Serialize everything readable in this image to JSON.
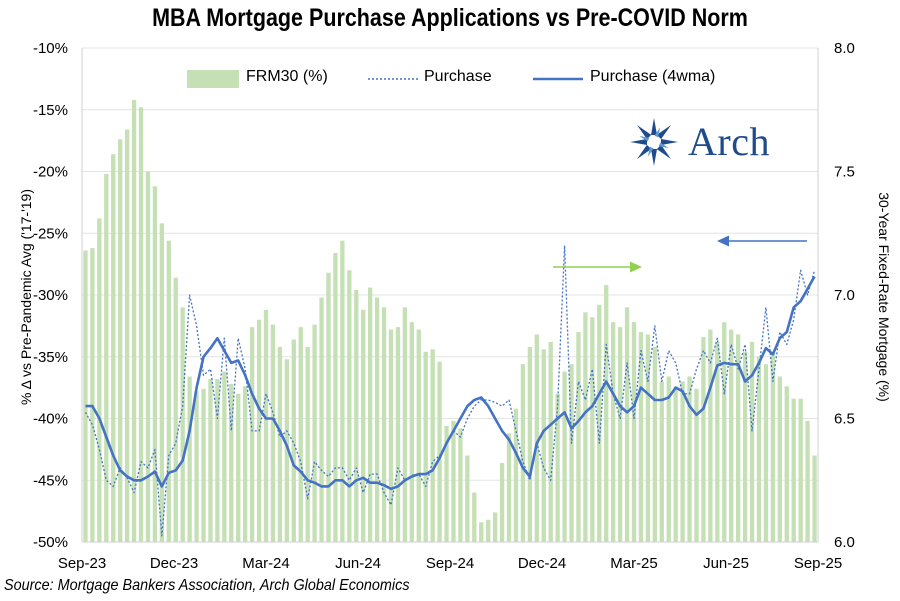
{
  "chart_data": {
    "type": "bar+line",
    "title": "MBA Mortgage Purchase Applications vs Pre-COVID Norm",
    "source": "Source: Mortgage Bankers Association, Arch Global Economics",
    "ylabel_left": "% Δ vs Pre-Pandemic Avg ('17-'19)",
    "ylabel_right": "30-Year Fixed-Rate Mortgage (%)",
    "ylim_left": [
      -50,
      -10
    ],
    "ylim_right": [
      6.0,
      8.0
    ],
    "yticks_left": [
      -10,
      -15,
      -20,
      -25,
      -30,
      -35,
      -40,
      -45,
      -50
    ],
    "yticks_left_labels": [
      "-10%",
      "-15%",
      "-20%",
      "-25%",
      "-30%",
      "-35%",
      "-40%",
      "-45%",
      "-50%"
    ],
    "yticks_right": [
      6.0,
      6.5,
      7.0,
      7.5,
      8.0
    ],
    "yticks_right_labels": [
      "6.0",
      "6.5",
      "7.0",
      "7.5",
      "8.0"
    ],
    "xlabels": [
      "Sep-23",
      "Dec-23",
      "Mar-24",
      "Jun-24",
      "Sep-24",
      "Dec-24",
      "Mar-25",
      "Jun-25",
      "Sep-25"
    ],
    "weeks": 106,
    "series": [
      {
        "name": "FRM30 (%)",
        "type": "bar",
        "axis": "right",
        "color": "#c5e0b4",
        "values": [
          7.18,
          7.19,
          7.31,
          7.49,
          7.57,
          7.63,
          7.67,
          7.79,
          7.76,
          7.5,
          7.44,
          7.29,
          7.22,
          7.07,
          6.95,
          6.67,
          6.61,
          6.62,
          6.66,
          6.66,
          6.69,
          6.64,
          6.6,
          6.63,
          6.87,
          6.9,
          6.94,
          6.88,
          6.79,
          6.74,
          6.82,
          6.87,
          6.79,
          6.88,
          6.99,
          7.09,
          7.17,
          7.22,
          7.1,
          7.02,
          6.94,
          7.03,
          6.99,
          6.95,
          6.86,
          6.87,
          6.95,
          6.89,
          6.86,
          6.77,
          6.78,
          6.73,
          6.47,
          6.49,
          6.46,
          6.35,
          6.2,
          6.08,
          6.09,
          6.12,
          6.32,
          6.44,
          6.54,
          6.72,
          6.79,
          6.84,
          6.78,
          6.81,
          6.6,
          6.69,
          6.72,
          6.85,
          6.93,
          6.91,
          6.96,
          7.04,
          6.89,
          6.87,
          6.95,
          6.89,
          6.85,
          6.84,
          6.79,
          6.65,
          6.67,
          6.63,
          6.65,
          6.67,
          6.62,
          6.83,
          6.86,
          6.81,
          6.89,
          6.86,
          6.84,
          6.77,
          6.81,
          6.75,
          6.72,
          6.77,
          6.67,
          6.63,
          6.58,
          6.58,
          6.49,
          6.35
        ],
        "legend": "FRM30 (%)"
      },
      {
        "name": "Purchase",
        "type": "line",
        "axis": "left",
        "style": "dotted",
        "color": "#4472c4",
        "values": [
          -39.5,
          -40.5,
          -42.5,
          -45,
          -45.5,
          -44,
          -44.8,
          -46,
          -43.5,
          -44,
          -42.5,
          -49.5,
          -43,
          -42,
          -39,
          -30,
          -32.5,
          -36.5,
          -36,
          -40,
          -33.5,
          -41,
          -33.5,
          -36,
          -41,
          -41,
          -38,
          -39.5,
          -41.5,
          -41,
          -42,
          -43.5,
          -46.5,
          -43.5,
          -44.2,
          -44.7,
          -44,
          -44,
          -45,
          -44,
          -46,
          -44.5,
          -44.5,
          -46,
          -47,
          -44,
          -45,
          -44.6,
          -44.5,
          -45.5,
          -43.5,
          -43,
          -42,
          -41,
          -41.5,
          -40,
          -39,
          -38.5,
          -38.5,
          -38.7,
          -39,
          -38.5,
          -41,
          -43.5,
          -45,
          -42,
          -44,
          -45,
          -39,
          -26,
          -42,
          -37,
          -38.5,
          -36,
          -42,
          -34,
          -38,
          -40,
          -35.5,
          -40,
          -34.5,
          -37,
          -32.5,
          -37,
          -34.5,
          -35.5,
          -38,
          -38,
          -36,
          -34.5,
          -35.5,
          -33.5,
          -38,
          -34,
          -36,
          -34,
          -41,
          -36,
          -31,
          -37,
          -33,
          -34,
          -32,
          -28,
          -30,
          -28
        ],
        "legend": "Purchase"
      },
      {
        "name": "Purchase (4wma)",
        "type": "line",
        "axis": "left",
        "style": "solid",
        "color": "#4472c4",
        "values": [
          -39,
          -39,
          -40,
          -41.5,
          -43,
          -44.2,
          -44.7,
          -45,
          -45,
          -44.7,
          -44.3,
          -45.5,
          -44.4,
          -44.2,
          -43.4,
          -41,
          -37.5,
          -35,
          -34.3,
          -33.5,
          -34.5,
          -35.5,
          -35.3,
          -36.5,
          -38,
          -39.2,
          -40,
          -40,
          -41,
          -42.2,
          -43.8,
          -44.3,
          -45,
          -45.2,
          -45.5,
          -45.5,
          -45,
          -45,
          -45.5,
          -45,
          -44.8,
          -45.2,
          -45.2,
          -45.4,
          -45.7,
          -45.5,
          -45,
          -44.7,
          -44.5,
          -44.5,
          -44.2,
          -43.2,
          -42,
          -41,
          -40,
          -39,
          -38.5,
          -38.3,
          -39,
          -40,
          -41,
          -41.7,
          -42.8,
          -44,
          -44.7,
          -42,
          -41,
          -40.5,
          -40,
          -39.5,
          -40.8,
          -40.2,
          -39.5,
          -39,
          -38,
          -37,
          -38,
          -39,
          -39.5,
          -39,
          -37.5,
          -38,
          -38.5,
          -38.5,
          -38.3,
          -37.5,
          -37.8,
          -39,
          -39.7,
          -39.2,
          -37.5,
          -35.7,
          -35.5,
          -35.6,
          -35.6,
          -37,
          -36.5,
          -35.5,
          -34.3,
          -34.8,
          -33.5,
          -33,
          -31,
          -30.5,
          -29.5,
          -28.5
        ],
        "legend": "Purchase (4wma)"
      }
    ],
    "legend_position": "top"
  },
  "logo": {
    "text": "Arch",
    "color": "#1f4a8c"
  },
  "colors": {
    "bar": "#c5e0b4",
    "line": "#4472c4",
    "arrow_green": "#92d050",
    "arrow_blue": "#4472c4"
  }
}
